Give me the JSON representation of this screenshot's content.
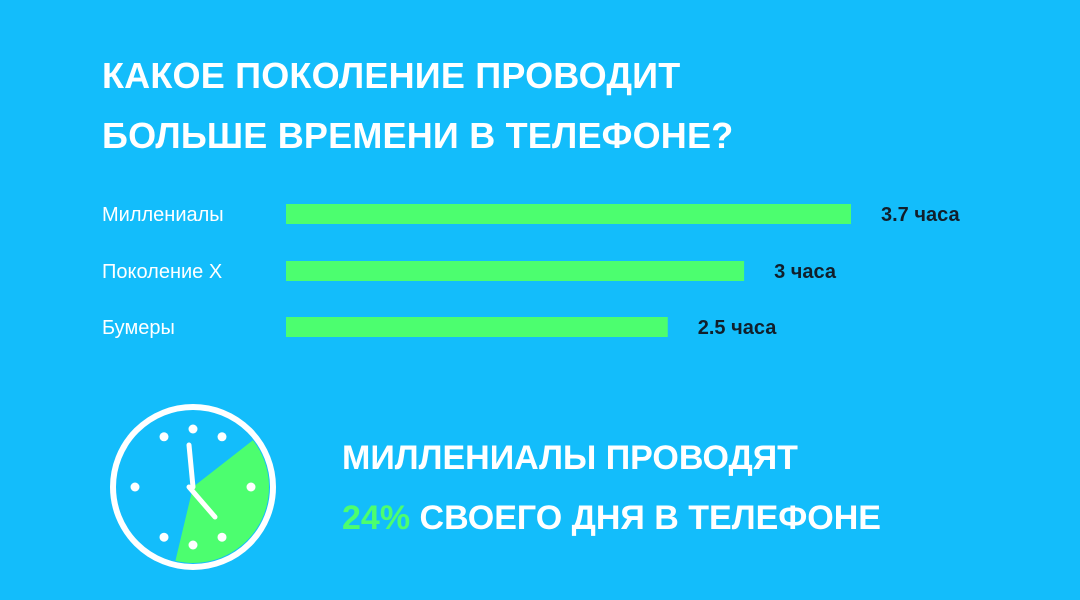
{
  "colors": {
    "background": "#13bdfb",
    "bar": "#4cfe6f",
    "text_light": "#ffffff",
    "text_dark": "#111f2b",
    "clock_fill": "#4cfe6f"
  },
  "title_lines": [
    "КАКОЕ ПОКОЛЕНИЕ ПРОВОДИТ",
    "БОЛЬШЕ ВРЕМЕНИ В ТЕЛЕФОНЕ?"
  ],
  "chart_data": {
    "type": "bar",
    "orientation": "horizontal",
    "title": "КАКОЕ ПОКОЛЕНИЕ ПРОВОДИТ БОЛЬШЕ ВРЕМЕНИ В ТЕЛЕФОНЕ?",
    "categories": [
      "Миллениалы",
      "Поколение X",
      "Бумеры"
    ],
    "values": [
      3.7,
      3,
      2.5
    ],
    "value_labels": [
      "3.7 часа",
      "3 часа",
      "2.5 часа"
    ],
    "xlabel": "",
    "ylabel": "",
    "xlim": [
      0,
      3.7
    ],
    "grid": false
  },
  "clock": {
    "icon": "clock-icon",
    "highlight_fraction": 0.24
  },
  "highlight": {
    "line1": "МИЛЛЕНИАЛЫ ПРОВОДЯТ",
    "percent": "24%",
    "line2_rest": " СВОЕГО ДНЯ В ТЕЛЕФОНЕ"
  }
}
